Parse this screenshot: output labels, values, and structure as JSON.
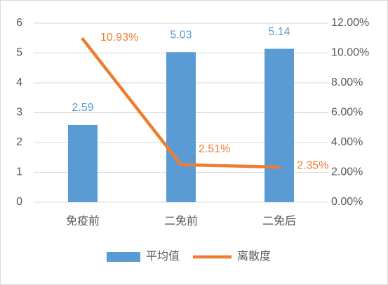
{
  "chart_data": {
    "type": "bar",
    "categories": [
      "免疫前",
      "二免前",
      "二免后"
    ],
    "series": [
      {
        "name": "平均值",
        "type": "bar",
        "color": "#5b9bd5",
        "values": [
          2.59,
          5.03,
          5.14
        ]
      },
      {
        "name": "离散度",
        "type": "line",
        "axis": "y2",
        "color": "#ed7d31",
        "values": [
          10.93,
          2.51,
          2.35
        ],
        "value_labels": [
          "10.93%",
          "2.51%",
          "2.35%"
        ]
      }
    ],
    "ylim": [
      0,
      6
    ],
    "yticks": [
      0,
      1,
      2,
      3,
      4,
      5,
      6
    ],
    "y2lim": [
      0,
      12
    ],
    "y2ticks": [
      {
        "value": 0,
        "label": "0.00%"
      },
      {
        "value": 2,
        "label": "2.00%"
      },
      {
        "value": 4,
        "label": "4.00%"
      },
      {
        "value": 6,
        "label": "6.00%"
      },
      {
        "value": 8,
        "label": "8.00%"
      },
      {
        "value": 10,
        "label": "10.00%"
      },
      {
        "value": 12,
        "label": "12.00%"
      }
    ],
    "grid": true,
    "legend": "bottom"
  }
}
